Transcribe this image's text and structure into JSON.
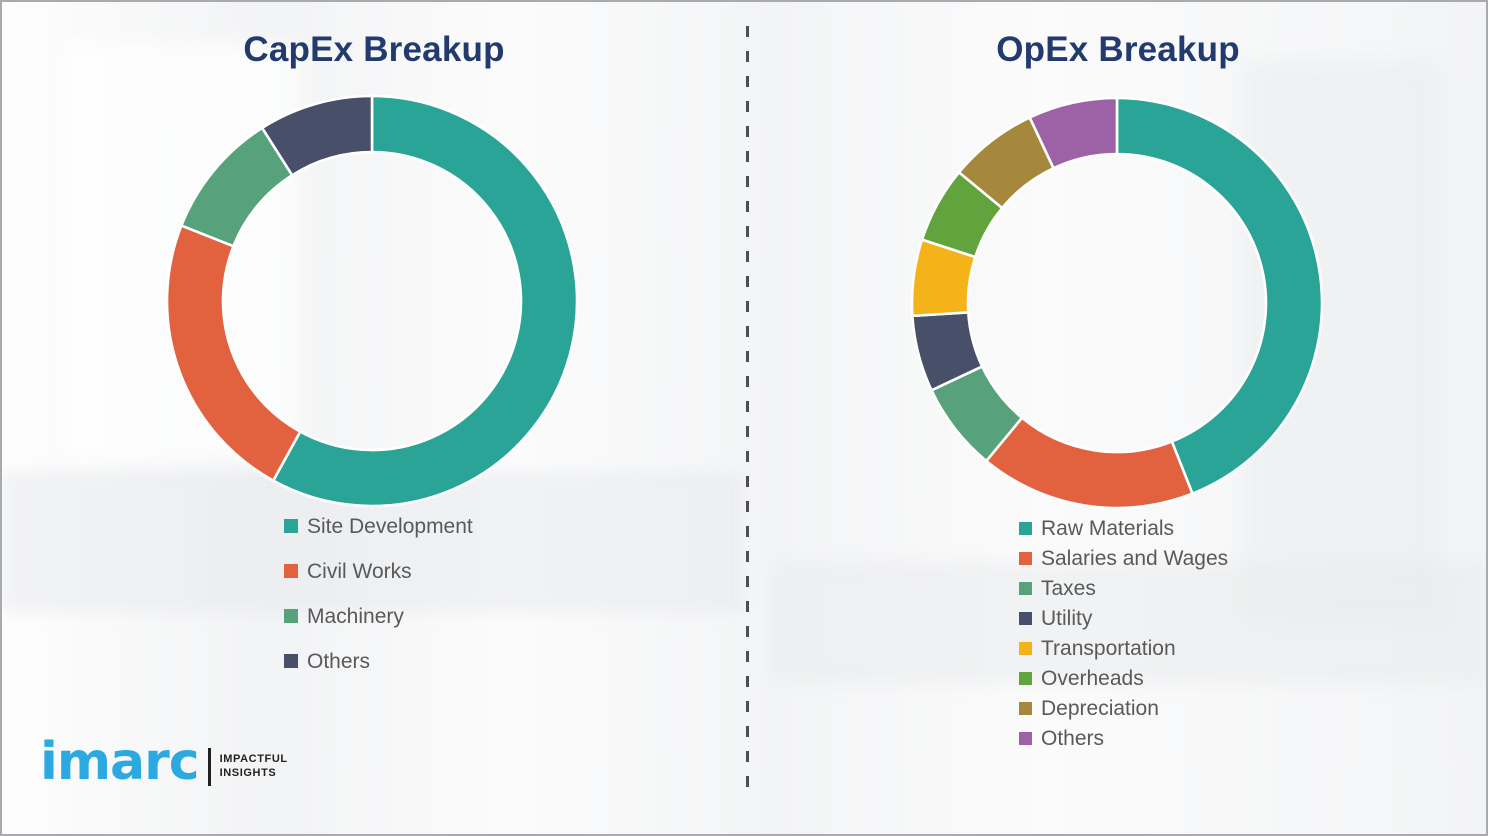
{
  "page": {
    "background_color": "#f6f6f7",
    "title_color": "#223a6d",
    "legend_text_color": "#595959",
    "divider_color": "#4d4d52"
  },
  "chart_data": [
    {
      "type": "pie",
      "subtype": "donut",
      "title": "CapEx Breakup",
      "categories": [
        "Site Development",
        "Civil Works",
        "Machinery",
        "Others"
      ],
      "values": [
        58,
        23,
        10,
        9
      ],
      "unit": "percent",
      "colors": [
        "#2aa496",
        "#e2613e",
        "#57a17b",
        "#484f69"
      ],
      "start_angle_deg": 0,
      "direction": "clockwise",
      "legend_position": "below-left",
      "data_labels": false
    },
    {
      "type": "pie",
      "subtype": "donut",
      "title": "OpEx Breakup",
      "categories": [
        "Raw Materials",
        "Salaries and Wages",
        "Taxes",
        "Utility",
        "Transportation",
        "Overheads",
        "Depreciation",
        "Others"
      ],
      "values": [
        44,
        17,
        7,
        6,
        6,
        6,
        7,
        7
      ],
      "unit": "percent",
      "colors": [
        "#2aa496",
        "#e2613e",
        "#57a17b",
        "#484f69",
        "#f5b31a",
        "#61a33c",
        "#a5883c",
        "#9d61a5"
      ],
      "start_angle_deg": 0,
      "direction": "clockwise",
      "legend_position": "below-left",
      "data_labels": false
    }
  ],
  "logo": {
    "brand": "imarc",
    "brand_color": "#2ba9e0",
    "tagline_line1": "IMPACTFUL",
    "tagline_line2": "INSIGHTS"
  }
}
